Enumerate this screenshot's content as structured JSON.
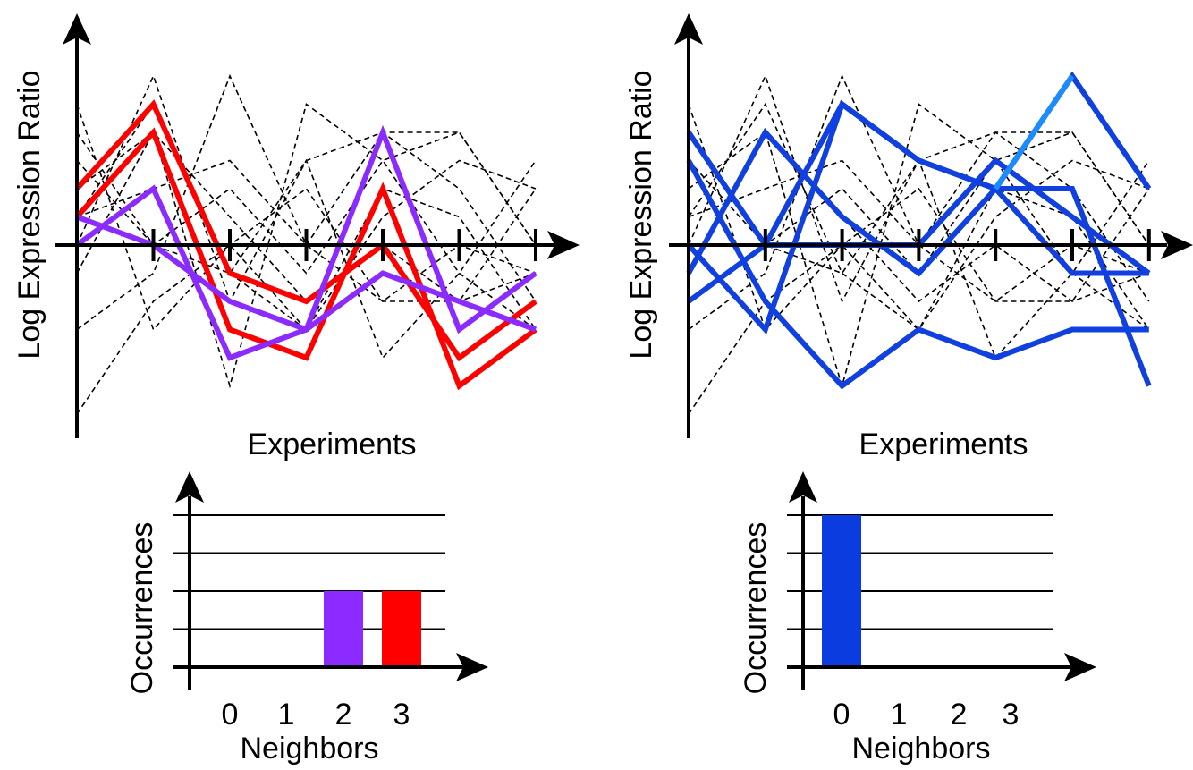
{
  "panels": [
    {
      "id": "left",
      "line_chart": {
        "xlabel": "Experiments",
        "ylabel": "Log Expression Ratio",
        "x": [
          0,
          1,
          2,
          3,
          4,
          5,
          6
        ],
        "y_range": [
          -5,
          5
        ],
        "background_profiles": [
          [
            5,
            -3,
            0,
            2,
            -2,
            -2,
            2
          ],
          [
            3,
            0,
            -1,
            3,
            4,
            2,
            -2
          ],
          [
            1,
            2,
            3,
            0,
            -2,
            0,
            -1
          ],
          [
            -3,
            -1,
            6,
            0,
            4,
            4,
            0
          ],
          [
            -1,
            4,
            -5,
            5,
            3,
            -1,
            -3
          ],
          [
            2,
            4,
            1,
            -2,
            0,
            -2,
            -1
          ],
          [
            4,
            0,
            2,
            -1,
            3,
            4,
            0
          ],
          [
            0,
            6,
            -2,
            3,
            -4,
            -1,
            3
          ],
          [
            -6,
            -2,
            0,
            -3,
            2,
            1,
            -3
          ],
          [
            1,
            5,
            -1,
            -3,
            1,
            3,
            2
          ]
        ],
        "highlighted": [
          {
            "color": "#ff0000",
            "values": [
              1,
              4,
              -3,
              -4,
              2,
              -5,
              -3
            ]
          },
          {
            "color": "#ff0000",
            "values": [
              2,
              5,
              -1,
              -2,
              0,
              -4,
              -2
            ]
          },
          {
            "color": "#8B2BFF",
            "values": [
              0,
              2,
              -4,
              -3,
              4,
              -3,
              -1
            ]
          },
          {
            "color": "#8B2BFF",
            "values": [
              1,
              0,
              -2,
              -3,
              -1,
              -2,
              -3
            ]
          }
        ]
      },
      "histogram": {
        "xlabel": "Neighbors",
        "ylabel": "Occurrences",
        "categories": [
          "0",
          "1",
          "2",
          "3"
        ],
        "values": [
          0,
          0,
          2,
          2
        ],
        "colors": [
          "#8B2BFF",
          "#8B2BFF",
          "#8B2BFF",
          "#ff0000"
        ],
        "y_gridlines": 4
      }
    },
    {
      "id": "right",
      "line_chart": {
        "xlabel": "Experiments",
        "ylabel": "Log Expression Ratio",
        "x": [
          0,
          1,
          2,
          3,
          4,
          5,
          6
        ],
        "y_range": [
          -5,
          5
        ],
        "background_profiles": [
          [
            5,
            -3,
            0,
            2,
            -2,
            -2,
            2
          ],
          [
            3,
            0,
            -1,
            3,
            4,
            2,
            -2
          ],
          [
            1,
            2,
            3,
            0,
            -2,
            0,
            -1
          ],
          [
            -3,
            -1,
            6,
            0,
            4,
            4,
            0
          ],
          [
            -1,
            4,
            -5,
            5,
            3,
            -1,
            -3
          ],
          [
            2,
            4,
            1,
            -2,
            0,
            -2,
            -1
          ],
          [
            4,
            0,
            2,
            -1,
            3,
            4,
            0
          ],
          [
            0,
            6,
            -2,
            3,
            -4,
            -1,
            3
          ],
          [
            -6,
            -2,
            0,
            -3,
            2,
            1,
            -3
          ],
          [
            1,
            5,
            -1,
            -3,
            1,
            3,
            2
          ]
        ],
        "highlighted": [
          {
            "color": "#1040e0",
            "values": [
              -1,
              4,
              1,
              -1,
              2,
              6,
              2
            ]
          },
          {
            "color": "#1040e0",
            "values": [
              3,
              -2,
              -5,
              -3,
              -4,
              -3,
              -3
            ]
          },
          {
            "color": "#1040e0",
            "values": [
              -2,
              0,
              0,
              0,
              3,
              1,
              -1
            ]
          },
          {
            "color": "#1040e0",
            "values": [
              4,
              0,
              5,
              3,
              2,
              2,
              -5
            ]
          },
          {
            "color": "#1040e0",
            "values": [
              0,
              -3,
              5,
              3,
              2,
              -1,
              -1
            ]
          }
        ],
        "segment_highlight_color": "#1a8cff"
      },
      "histogram": {
        "xlabel": "Neighbors",
        "ylabel": "Occurrences",
        "categories": [
          "0",
          "1",
          "2",
          "3"
        ],
        "values": [
          4,
          0,
          0,
          0
        ],
        "colors": [
          "#0a3ce0",
          "#0a3ce0",
          "#0a3ce0",
          "#0a3ce0"
        ],
        "y_gridlines": 4
      }
    }
  ]
}
